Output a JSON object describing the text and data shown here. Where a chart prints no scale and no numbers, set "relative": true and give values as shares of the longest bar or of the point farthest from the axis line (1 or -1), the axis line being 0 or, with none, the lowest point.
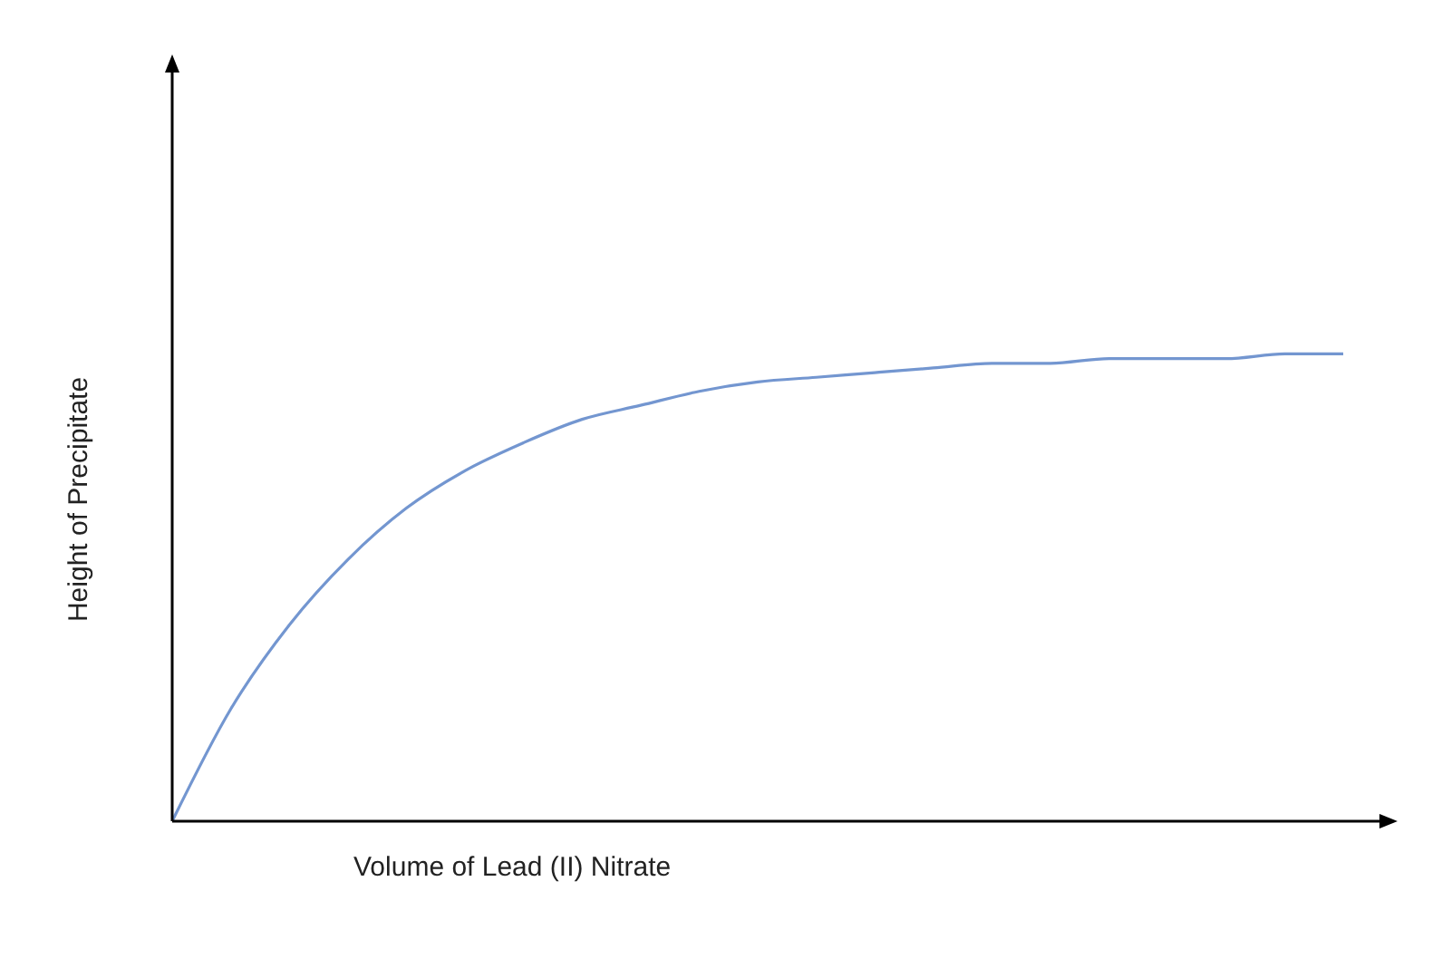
{
  "chart_data": {
    "type": "line",
    "relative": true,
    "xlabel": "Volume of Lead (II) Nitrate",
    "ylabel": "Height of Precipitate",
    "categories": [
      null,
      null,
      null,
      null,
      null,
      null,
      null,
      null,
      null,
      null,
      null,
      null,
      null,
      null,
      null,
      null,
      null,
      null,
      null,
      null,
      null
    ],
    "series": [
      {
        "color": "#7396d0",
        "values": [
          0,
          0.24,
          0.42,
          0.56,
          0.67,
          0.75,
          0.81,
          0.86,
          0.89,
          0.92,
          0.94,
          0.95,
          0.96,
          0.97,
          0.98,
          0.98,
          0.99,
          0.99,
          0.99,
          1,
          1
        ]
      }
    ],
    "marker": "none"
  }
}
